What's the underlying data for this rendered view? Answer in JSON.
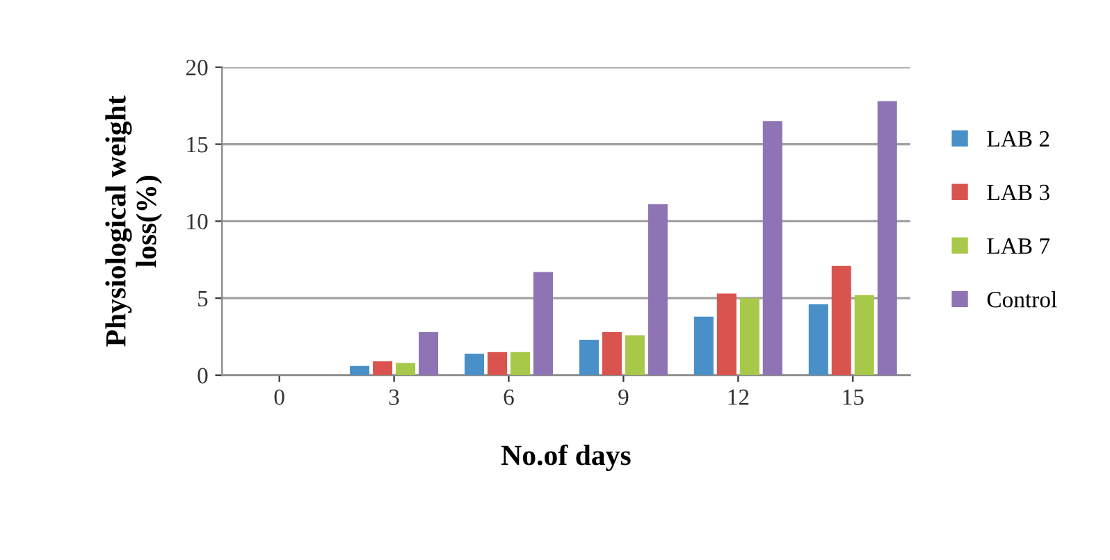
{
  "chart_data": {
    "type": "bar",
    "xlabel": "No.of days",
    "ylabel": "Physiological weight\nloss(%)",
    "categories": [
      "0",
      "3",
      "6",
      "9",
      "12",
      "15"
    ],
    "series": [
      {
        "name": "LAB 2",
        "color": "#4a90c8",
        "values": [
          0,
          0.6,
          1.4,
          2.3,
          3.8,
          4.6
        ]
      },
      {
        "name": "LAB 3",
        "color": "#d9534f",
        "values": [
          0,
          0.9,
          1.5,
          2.8,
          5.3,
          7.1
        ]
      },
      {
        "name": "LAB 7",
        "color": "#a8c84a",
        "values": [
          0,
          0.8,
          1.5,
          2.6,
          5.0,
          5.2
        ]
      },
      {
        "name": "Control",
        "color": "#8e74b4",
        "values": [
          0,
          2.8,
          6.7,
          11.1,
          16.5,
          17.8
        ]
      }
    ],
    "ylim": [
      0,
      20
    ],
    "yticks": [
      0,
      5,
      10,
      15,
      20
    ],
    "grid": "y",
    "legend": "right"
  }
}
